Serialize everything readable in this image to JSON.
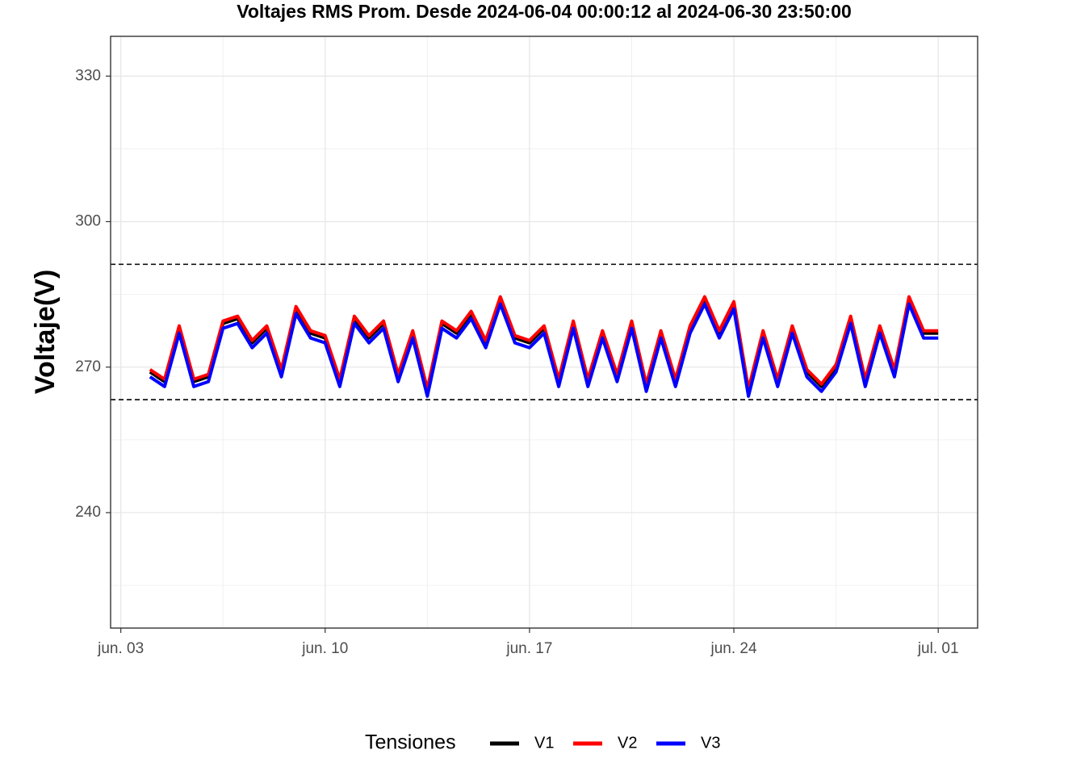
{
  "chart_data": {
    "type": "line",
    "title": "Voltajes RMS Prom. Desde  2024-06-04 00:00:12  al  2024-06-30 23:50:00",
    "y_label": "Voltaje(V)",
    "legend_title": "Tensiones",
    "legend": "bottom",
    "grid": true,
    "x": [
      4,
      4.5,
      5,
      5.5,
      6,
      6.5,
      7,
      7.5,
      8,
      8.5,
      9,
      9.5,
      10,
      10.5,
      11,
      11.5,
      12,
      12.5,
      13,
      13.5,
      14,
      14.5,
      15,
      15.5,
      16,
      16.5,
      17,
      17.5,
      18,
      18.5,
      19,
      19.5,
      20,
      20.5,
      21,
      21.5,
      22,
      22.5,
      23,
      23.5,
      24,
      24.5,
      25,
      25.5,
      26,
      26.5,
      27,
      27.5,
      28,
      28.5,
      29,
      29.5,
      30,
      30.5,
      31
    ],
    "series": [
      {
        "name": "V1",
        "color": "#000000",
        "values": [
          269,
          267,
          278,
          267,
          268,
          279,
          280,
          275,
          278,
          269,
          282,
          277,
          276,
          267,
          280,
          276,
          279,
          268,
          277,
          265,
          279,
          277,
          281,
          275,
          284,
          276,
          275,
          278,
          267,
          279,
          267,
          277,
          268,
          279,
          266,
          277,
          267,
          278,
          284,
          277,
          283,
          265,
          277,
          267,
          278,
          269,
          266,
          270,
          280,
          267,
          278,
          269,
          284,
          277,
          277
        ]
      },
      {
        "name": "V2",
        "color": "#ff0000",
        "values": [
          269.5,
          267.5,
          278.5,
          267.5,
          268.5,
          279.5,
          280.5,
          275.5,
          278.5,
          269.5,
          282.5,
          277.5,
          276.5,
          267.5,
          280.5,
          276.5,
          279.5,
          268.5,
          277.5,
          265.5,
          279.5,
          277.5,
          281.5,
          275.5,
          284.5,
          276.5,
          275.5,
          278.5,
          267.5,
          279.5,
          267.5,
          277.5,
          268.5,
          279.5,
          266.5,
          277.5,
          267.5,
          278.5,
          284.5,
          277.5,
          283.5,
          265.5,
          277.5,
          267.5,
          278.5,
          269.5,
          266.5,
          270.5,
          280.5,
          267.5,
          278.5,
          269.5,
          284.5,
          277.5,
          277.5
        ]
      },
      {
        "name": "V3",
        "color": "#0000ff",
        "values": [
          268,
          266,
          277,
          266,
          267,
          278,
          279,
          274,
          277,
          268,
          281,
          276,
          275,
          266,
          279,
          275,
          278,
          267,
          276,
          264,
          278,
          276,
          280,
          274,
          283,
          275,
          274,
          277,
          266,
          278,
          266,
          276,
          267,
          278,
          265,
          276,
          266,
          277,
          283,
          276,
          282,
          264,
          276,
          266,
          277,
          268,
          265,
          269,
          279,
          266,
          277,
          268,
          283,
          276,
          276
        ]
      }
    ],
    "hlines": [
      291.2,
      263.3
    ],
    "xlim": [
      2.65,
      32.35
    ],
    "xticks": [
      {
        "value": 3,
        "label": "jun. 03"
      },
      {
        "value": 10,
        "label": "jun. 10"
      },
      {
        "value": 17,
        "label": "jun. 17"
      },
      {
        "value": 24,
        "label": "jun. 24"
      },
      {
        "value": 31,
        "label": "jul. 01"
      }
    ],
    "ylim": [
      216.2,
      338.2
    ],
    "yticks": [
      240,
      270,
      300,
      330
    ]
  }
}
